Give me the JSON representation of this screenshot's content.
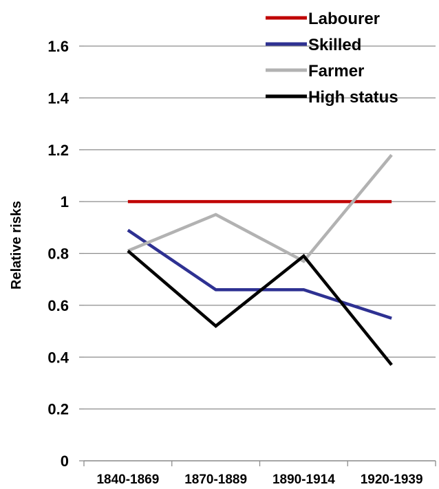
{
  "chart_data": {
    "type": "line",
    "title": "",
    "xlabel": "",
    "ylabel": "Relative risks",
    "categories": [
      "1840-1869",
      "1870-1889",
      "1890-1914",
      "1920-1939"
    ],
    "ylim": [
      0,
      1.6
    ],
    "yticks": [
      "0",
      "0.2",
      "0.4",
      "0.6",
      "0.8",
      "1",
      "1.2",
      "1.4",
      "1.6"
    ],
    "grid": "horizontal",
    "legend_position": "top-right",
    "series": [
      {
        "name": "Labourer",
        "color": "#c00000",
        "values": [
          1.0,
          1.0,
          1.0,
          1.0
        ]
      },
      {
        "name": "Skilled",
        "color": "#2e3192",
        "values": [
          0.89,
          0.66,
          0.66,
          0.55
        ]
      },
      {
        "name": "Farmer",
        "color": "#b2b2b2",
        "values": [
          0.81,
          0.95,
          0.77,
          1.18
        ]
      },
      {
        "name": "High status",
        "color": "#000000",
        "values": [
          0.81,
          0.52,
          0.79,
          0.37
        ]
      }
    ]
  }
}
